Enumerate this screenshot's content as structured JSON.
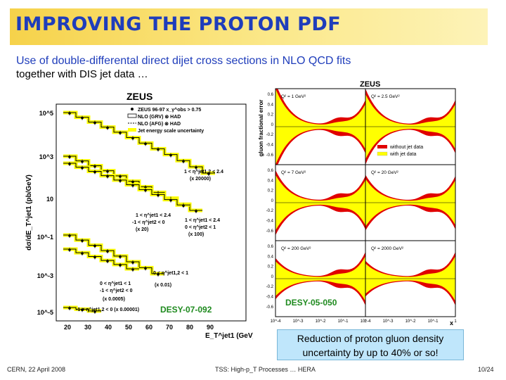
{
  "slide": {
    "title": "IMPROVING THE PROTON PDF",
    "subtitle_line1": "Use of double-differental direct dijet cross sections in NLO QCD fits",
    "subtitle_line2": "together with DIS jet data …",
    "callout": "Reduction of proton gluon density uncertainty by up to 40% or so!",
    "colors": {
      "title": "#1f3dbb",
      "band_yellow": "#ffff00",
      "band_red": "#e00000",
      "callout_bg": "#bfe6fb"
    }
  },
  "left_figure": {
    "header": "ZEUS",
    "ylabel": "dσ/dE_T^jet1 (pb/GeV)",
    "xlabel": "E_T^jet1 (GeV)",
    "legend": [
      "ZEUS 96-97   x_γ^obs > 0.75",
      "NLO (GRV) ⊗ HAD",
      "NLO (AFG) ⊗ HAD",
      "Jet energy scale uncertainty"
    ],
    "y_ticks": [
      "10^5",
      "10^3",
      "10",
      "10^-1",
      "10^-3",
      "10^-5"
    ],
    "x_ticks": [
      "20",
      "30",
      "40",
      "50",
      "60",
      "70",
      "80",
      "90"
    ],
    "annotations": [
      "1 < η^jet1,2 < 2.4",
      "(x 20000)",
      "1 < η^jet1 < 2.4",
      "-1 < η^jet2 < 0",
      "(x 20)",
      "1 < η^jet1 < 2.4",
      "0 < η^jet2 < 1",
      "(x 100)",
      "0 < η^jet1,2 < 1",
      "(x 0.01)",
      "0 < η^jet1 < 1",
      "-1 < η^jet2 < 0",
      "(x 0.0005)",
      "-1 < η^jet1,2 < 0  (x 0.00001)"
    ],
    "label": "DESY-07-092"
  },
  "right_figure": {
    "header": "ZEUS",
    "ylabel": "gluon fractional error",
    "xlabel": "x",
    "panels": [
      "Q² = 1 GeV²",
      "Q² = 2.5 GeV²",
      "Q² = 7 GeV²",
      "Q² = 20 GeV²",
      "Q² = 200 GeV²",
      "Q² = 2000 GeV²"
    ],
    "y_ticks": [
      "0.6",
      "0.4",
      "0.2",
      "0",
      "-0.2",
      "-0.4",
      "-0.6"
    ],
    "x_ticks": [
      "10^-4",
      "10^-3",
      "10^-2",
      "10^-1",
      "1"
    ],
    "legend": [
      "without jet data",
      "with jet data"
    ],
    "label": "DESY-05-050"
  },
  "footer": {
    "left": "CERN, 22 April 2008",
    "center": "TSS: High-p_T Processes … HERA",
    "right": "10/24"
  }
}
